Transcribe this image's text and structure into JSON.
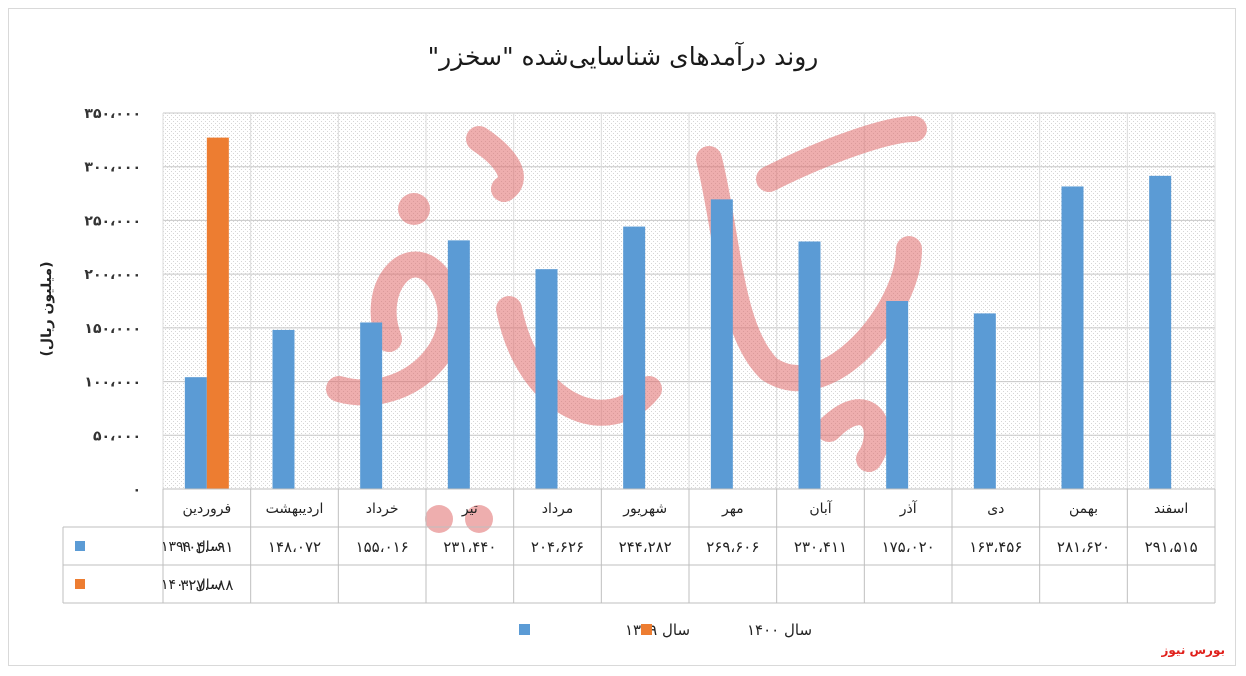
{
  "brand_label": "بورس نیوز",
  "chart_data": {
    "type": "bar",
    "title": "روند درآمدهای شناسایی‌شده \"سخزر\"",
    "ylabel": "(میلیون ریال)",
    "ylim": [
      0,
      350000
    ],
    "yticks": [
      0,
      50000,
      100000,
      150000,
      200000,
      250000,
      300000,
      350000
    ],
    "ytick_labels": [
      "۰",
      "۵۰،۰۰۰",
      "۱۰۰،۰۰۰",
      "۱۵۰،۰۰۰",
      "۲۰۰،۰۰۰",
      "۲۵۰،۰۰۰",
      "۳۰۰،۰۰۰",
      "۳۵۰،۰۰۰"
    ],
    "categories": [
      "فروردین",
      "اردیبهشت",
      "خرداد",
      "تیر",
      "مرداد",
      "شهریور",
      "مهر",
      "آبان",
      "آذر",
      "دی",
      "بهمن",
      "اسفند"
    ],
    "series": [
      {
        "name": "سال ۱۳۹۹",
        "color": "#5b9bd5",
        "values": [
          104091,
          148072,
          155016,
          231440,
          204626,
          244282,
          269606,
          230411,
          175020,
          163456,
          281620,
          291515
        ],
        "labels": [
          "۱۰۴،۰۹۱",
          "۱۴۸،۰۷۲",
          "۱۵۵،۰۱۶",
          "۲۳۱،۴۴۰",
          "۲۰۴،۶۲۶",
          "۲۴۴،۲۸۲",
          "۲۶۹،۶۰۶",
          "۲۳۰،۴۱۱",
          "۱۷۵،۰۲۰",
          "۱۶۳،۴۵۶",
          "۲۸۱،۶۲۰",
          "۲۹۱،۵۱۵"
        ]
      },
      {
        "name": "سال ۱۴۰۰",
        "color": "#ed7d31",
        "values": [
          327088,
          null,
          null,
          null,
          null,
          null,
          null,
          null,
          null,
          null,
          null,
          null
        ],
        "labels": [
          "۳۲۷،۰۸۸",
          "",
          "",
          "",
          "",
          "",
          "",
          "",
          "",
          "",
          "",
          ""
        ]
      }
    ],
    "grid": true,
    "legend": "bottom",
    "data_table": true
  }
}
